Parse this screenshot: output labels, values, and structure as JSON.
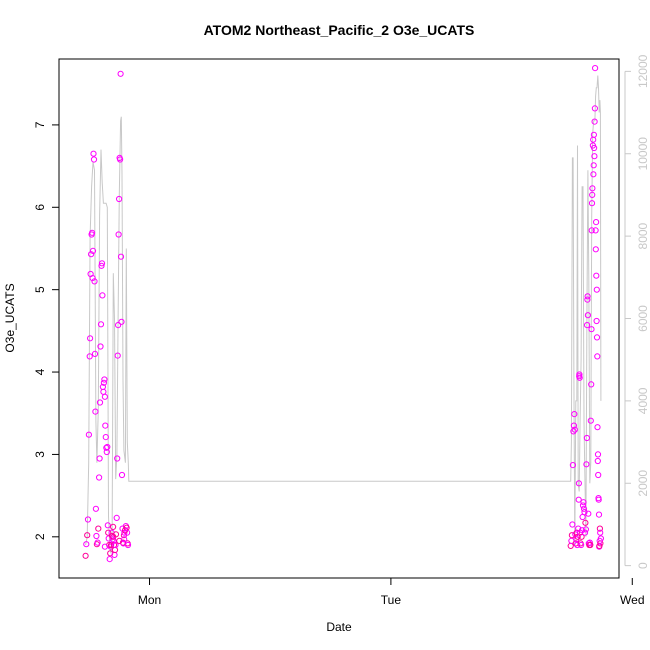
{
  "chart_data": {
    "type": "scatter",
    "title": "ATOM2 Northeast_Pacific_2 O3e_UCATS",
    "xlabel": "Date",
    "ylabel": "O3e_UCATS",
    "x_axis": {
      "unit": "day",
      "range": [
        -0.375,
        1.945
      ],
      "ticks": [
        {
          "value": 0,
          "label": "Mon"
        },
        {
          "value": 1,
          "label": "Tue"
        },
        {
          "value": 2,
          "label": "Wed"
        }
      ]
    },
    "y_axis": {
      "range": [
        1.5,
        7.8
      ],
      "ticks": [
        2,
        3,
        4,
        5,
        6,
        7
      ]
    },
    "y2_axis": {
      "label": "",
      "color": "#c8c8c8",
      "range": [
        -300,
        12300
      ],
      "ticks": [
        0,
        2000,
        4000,
        6000,
        8000,
        10000,
        12000
      ]
    },
    "colors": {
      "points": "#ff00ff",
      "points_dense": "#ff0099",
      "altitude_line": "#c8c8c8",
      "frame": "#000000"
    },
    "grid": false,
    "series": [
      {
        "kind": "points",
        "axis": "left",
        "marker": "open-circle",
        "points": [
          [
            -0.265,
            1.77
          ],
          [
            -0.262,
            1.91
          ],
          [
            -0.258,
            2.02
          ],
          [
            -0.255,
            2.21
          ],
          [
            -0.251,
            3.24
          ],
          [
            -0.248,
            4.19
          ],
          [
            -0.246,
            4.41
          ],
          [
            -0.244,
            5.19
          ],
          [
            -0.242,
            5.43
          ],
          [
            -0.24,
            5.67
          ],
          [
            -0.238,
            5.69
          ],
          [
            -0.236,
            5.14
          ],
          [
            -0.234,
            5.47
          ],
          [
            -0.232,
            6.65
          ],
          [
            -0.23,
            6.58
          ],
          [
            -0.228,
            5.1
          ],
          [
            -0.226,
            4.22
          ],
          [
            -0.224,
            3.52
          ],
          [
            -0.222,
            2.34
          ],
          [
            -0.22,
            2.01
          ],
          [
            -0.218,
            1.91
          ],
          [
            -0.215,
            1.93
          ],
          [
            -0.212,
            2.1
          ],
          [
            -0.209,
            2.72
          ],
          [
            -0.207,
            2.95
          ],
          [
            -0.205,
            3.63
          ],
          [
            -0.203,
            4.31
          ],
          [
            -0.201,
            4.58
          ],
          [
            -0.199,
            5.29
          ],
          [
            -0.197,
            5.32
          ],
          [
            -0.195,
            4.93
          ],
          [
            -0.193,
            3.82
          ],
          [
            -0.191,
            3.76
          ],
          [
            -0.189,
            3.87
          ],
          [
            -0.187,
            3.91
          ],
          [
            -0.185,
            3.7
          ],
          [
            -0.183,
            3.35
          ],
          [
            -0.181,
            3.21
          ],
          [
            -0.179,
            3.08
          ],
          [
            -0.177,
            3.03
          ],
          [
            -0.175,
            3.09
          ],
          [
            -0.173,
            2.14
          ],
          [
            -0.171,
            2.05
          ],
          [
            -0.169,
            1.98
          ],
          [
            -0.167,
            1.9
          ],
          [
            -0.165,
            1.73
          ],
          [
            -0.163,
            1.8
          ],
          [
            -0.161,
            1.88
          ],
          [
            -0.159,
            1.9
          ],
          [
            -0.157,
            2.05
          ],
          [
            -0.155,
            2.01
          ],
          [
            -0.153,
            1.97
          ],
          [
            -0.151,
            2.12
          ],
          [
            -0.149,
            1.95
          ],
          [
            -0.147,
            1.9
          ],
          [
            -0.145,
            1.78
          ],
          [
            -0.143,
            1.84
          ],
          [
            -0.141,
            1.9
          ],
          [
            -0.139,
            2.03
          ],
          [
            -0.136,
            2.23
          ],
          [
            -0.134,
            2.95
          ],
          [
            -0.132,
            4.2
          ],
          [
            -0.13,
            4.57
          ],
          [
            -0.128,
            5.67
          ],
          [
            -0.126,
            6.1
          ],
          [
            -0.124,
            6.6
          ],
          [
            -0.122,
            6.58
          ],
          [
            -0.12,
            7.62
          ],
          [
            -0.118,
            5.4
          ],
          [
            -0.116,
            4.61
          ],
          [
            -0.114,
            2.75
          ],
          [
            -0.112,
            2.1
          ],
          [
            -0.11,
            1.93
          ],
          [
            -0.108,
            1.92
          ],
          [
            -0.106,
            2.02
          ],
          [
            -0.104,
            2.05
          ],
          [
            -0.101,
            2.08
          ],
          [
            -0.098,
            2.13
          ],
          [
            -0.095,
            2.11
          ],
          [
            -0.093,
            2.05
          ],
          [
            -0.091,
            1.92
          ],
          [
            -0.089,
            1.9
          ],
          [
            -0.125,
            1.95
          ],
          [
            -0.185,
            1.88
          ],
          [
            -0.15,
            2.0
          ],
          [
            -0.105,
            1.97
          ],
          [
            1.745,
            1.89
          ],
          [
            1.748,
            1.95
          ],
          [
            1.75,
            2.02
          ],
          [
            1.752,
            2.15
          ],
          [
            1.754,
            2.87
          ],
          [
            1.756,
            3.28
          ],
          [
            1.758,
            3.35
          ],
          [
            1.76,
            3.49
          ],
          [
            1.762,
            3.3
          ],
          [
            1.764,
            2.03
          ],
          [
            1.766,
            1.92
          ],
          [
            1.768,
            1.97
          ],
          [
            1.77,
            2.05
          ],
          [
            1.772,
            1.9
          ],
          [
            1.774,
            2.0
          ],
          [
            1.776,
            2.1
          ],
          [
            1.778,
            2.45
          ],
          [
            1.779,
            2.65
          ],
          [
            1.78,
            3.95
          ],
          [
            1.781,
            3.97
          ],
          [
            1.782,
            3.93
          ],
          [
            1.784,
            2.05
          ],
          [
            1.786,
            1.92
          ],
          [
            1.788,
            1.9
          ],
          [
            1.79,
            2.0
          ],
          [
            1.792,
            2.08
          ],
          [
            1.794,
            2.24
          ],
          [
            1.796,
            2.38
          ],
          [
            1.798,
            2.42
          ],
          [
            1.8,
            2.34
          ],
          [
            1.802,
            2.3
          ],
          [
            1.804,
            2.05
          ],
          [
            1.806,
            2.17
          ],
          [
            1.808,
            2.09
          ],
          [
            1.81,
            2.88
          ],
          [
            1.812,
            3.2
          ],
          [
            1.813,
            4.57
          ],
          [
            1.814,
            4.88
          ],
          [
            1.815,
            4.92
          ],
          [
            1.816,
            4.69
          ],
          [
            1.818,
            2.28
          ],
          [
            1.82,
            1.92
          ],
          [
            1.822,
            1.9
          ],
          [
            1.824,
            1.93
          ],
          [
            1.826,
            1.9
          ],
          [
            1.828,
            3.41
          ],
          [
            1.83,
            3.85
          ],
          [
            1.831,
            4.52
          ],
          [
            1.832,
            5.72
          ],
          [
            1.833,
            6.05
          ],
          [
            1.834,
            6.15
          ],
          [
            1.835,
            6.23
          ],
          [
            1.837,
            6.75
          ],
          [
            1.838,
            6.82
          ],
          [
            1.839,
            6.4
          ],
          [
            1.84,
            6.51
          ],
          [
            1.841,
            6.88
          ],
          [
            1.842,
            6.72
          ],
          [
            1.843,
            6.62
          ],
          [
            1.844,
            7.04
          ],
          [
            1.845,
            7.2
          ],
          [
            1.846,
            7.69
          ],
          [
            1.848,
            5.72
          ],
          [
            1.849,
            5.49
          ],
          [
            1.85,
            5.82
          ],
          [
            1.851,
            5.17
          ],
          [
            1.852,
            4.62
          ],
          [
            1.853,
            5.0
          ],
          [
            1.854,
            4.42
          ],
          [
            1.855,
            4.19
          ],
          [
            1.856,
            3.33
          ],
          [
            1.857,
            2.92
          ],
          [
            1.858,
            3.0
          ],
          [
            1.859,
            2.75
          ],
          [
            1.86,
            2.47
          ],
          [
            1.861,
            2.45
          ],
          [
            1.862,
            2.27
          ],
          [
            1.863,
            1.88
          ],
          [
            1.864,
            1.89
          ],
          [
            1.865,
            1.95
          ],
          [
            1.866,
            2.1
          ],
          [
            1.867,
            2.05
          ],
          [
            1.868,
            1.92
          ],
          [
            1.87,
            1.98
          ]
        ]
      },
      {
        "kind": "line",
        "axis": "right",
        "points": [
          [
            -0.265,
            500
          ],
          [
            -0.258,
            700
          ],
          [
            -0.252,
            2500
          ],
          [
            -0.246,
            8000
          ],
          [
            -0.24,
            9200
          ],
          [
            -0.234,
            9800
          ],
          [
            -0.228,
            9600
          ],
          [
            -0.222,
            3500
          ],
          [
            -0.218,
            2500
          ],
          [
            -0.212,
            3800
          ],
          [
            -0.207,
            8500
          ],
          [
            -0.201,
            10100
          ],
          [
            -0.196,
            9300
          ],
          [
            -0.191,
            8800
          ],
          [
            -0.18,
            8800
          ],
          [
            -0.175,
            8700
          ],
          [
            -0.17,
            1200
          ],
          [
            -0.165,
            500
          ],
          [
            -0.16,
            300
          ],
          [
            -0.155,
            600
          ],
          [
            -0.15,
            7100
          ],
          [
            -0.145,
            6000
          ],
          [
            -0.14,
            2100
          ],
          [
            -0.135,
            2700
          ],
          [
            -0.13,
            6000
          ],
          [
            -0.125,
            9000
          ],
          [
            -0.12,
            10800
          ],
          [
            -0.117,
            10900
          ],
          [
            -0.114,
            9500
          ],
          [
            -0.11,
            4500
          ],
          [
            -0.106,
            2800
          ],
          [
            -0.1,
            2500
          ],
          [
            -0.096,
            7700
          ],
          [
            -0.092,
            3000
          ],
          [
            -0.088,
            2500
          ],
          [
            -0.086,
            2050
          ],
          [
            1.745,
            2050
          ],
          [
            1.748,
            3000
          ],
          [
            1.752,
            9900
          ],
          [
            1.755,
            9900
          ],
          [
            1.758,
            4500
          ],
          [
            1.762,
            500
          ],
          [
            1.766,
            4000
          ],
          [
            1.77,
            4000
          ],
          [
            1.773,
            10200
          ],
          [
            1.776,
            2000
          ],
          [
            1.78,
            1800
          ],
          [
            1.784,
            3500
          ],
          [
            1.788,
            5000
          ],
          [
            1.792,
            9200
          ],
          [
            1.796,
            9200
          ],
          [
            1.8,
            3500
          ],
          [
            1.804,
            2000
          ],
          [
            1.808,
            700
          ],
          [
            1.812,
            6000
          ],
          [
            1.816,
            9600
          ],
          [
            1.82,
            7000
          ],
          [
            1.824,
            2000
          ],
          [
            1.828,
            2500
          ],
          [
            1.832,
            8500
          ],
          [
            1.836,
            10500
          ],
          [
            1.84,
            10800
          ],
          [
            1.845,
            10800
          ],
          [
            1.848,
            11400
          ],
          [
            1.851,
            11600
          ],
          [
            1.854,
            11600
          ],
          [
            1.857,
            11900
          ],
          [
            1.86,
            11600
          ],
          [
            1.863,
            11000
          ],
          [
            1.866,
            11300
          ],
          [
            1.868,
            11000
          ],
          [
            1.87,
            4000
          ]
        ]
      }
    ]
  }
}
